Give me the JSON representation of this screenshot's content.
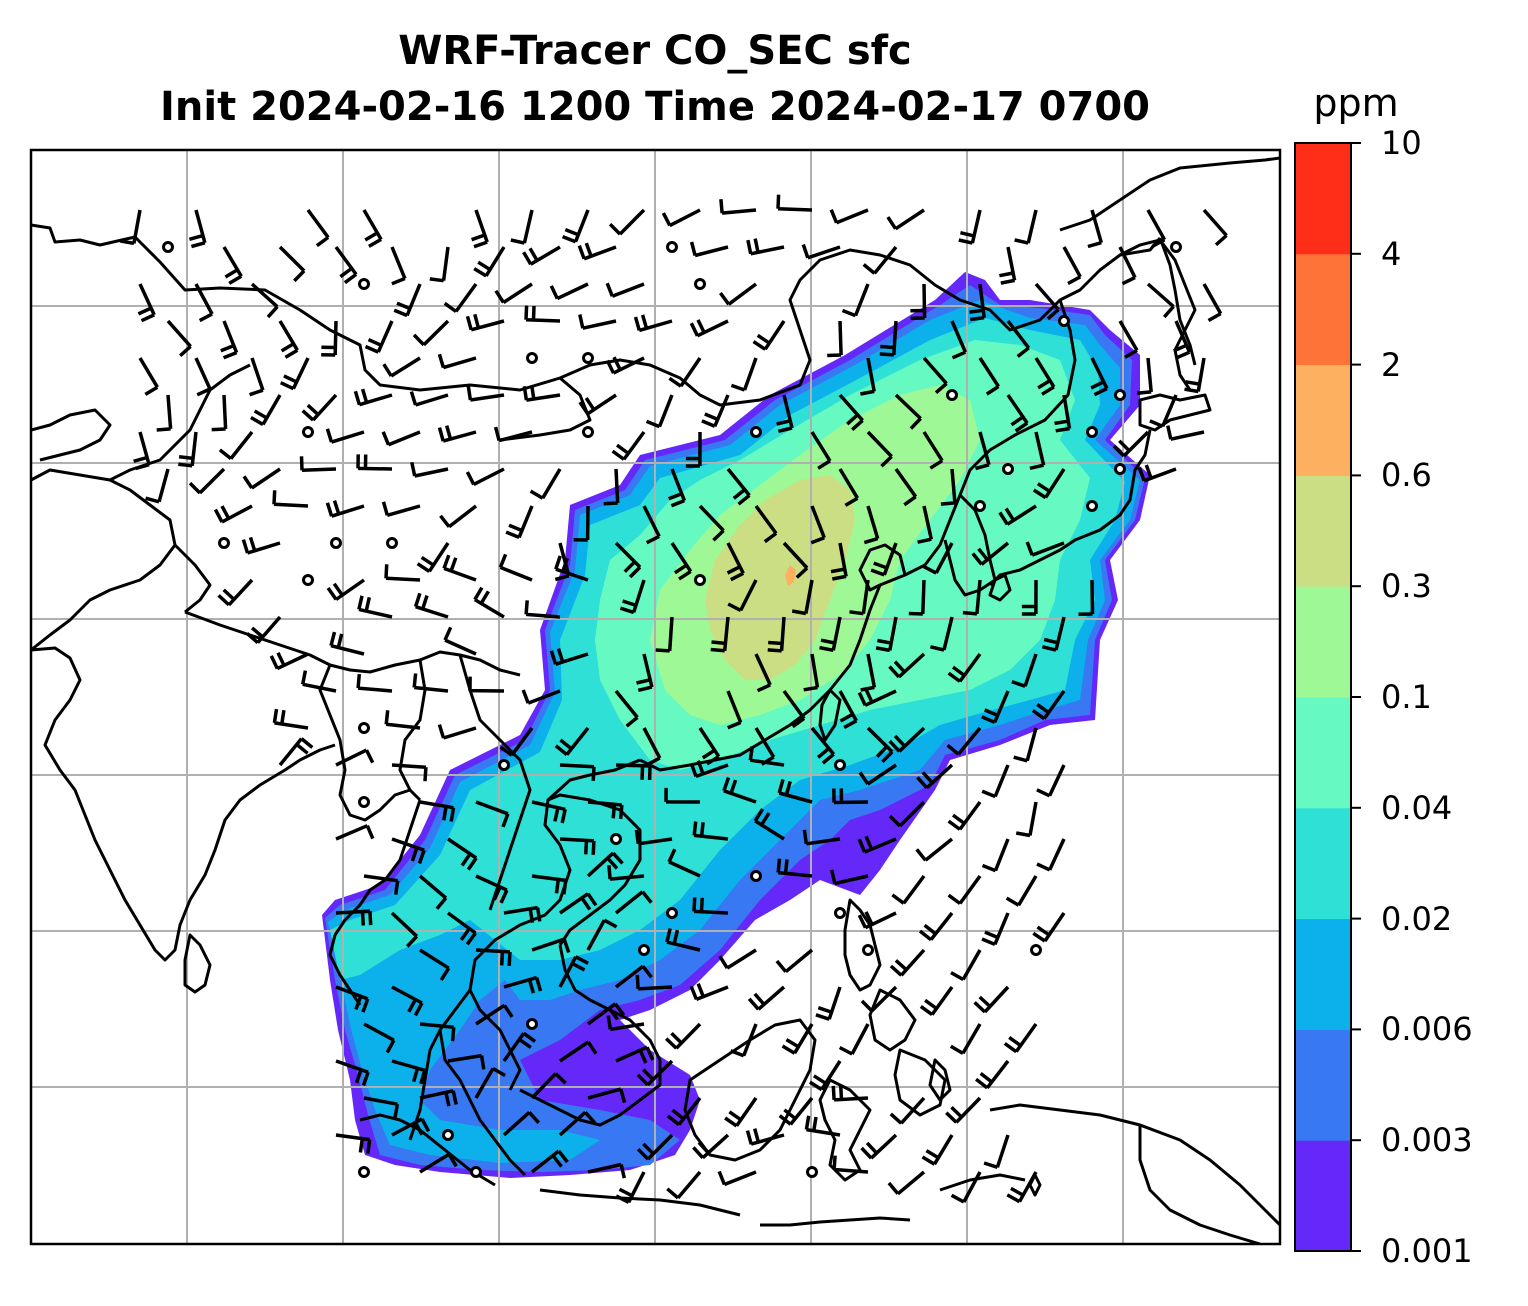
{
  "title": {
    "line1": "WRF-Tracer CO_SEC sfc",
    "line2": "Init 2024-02-16 1200 Time 2024-02-17 0700"
  },
  "colorbar": {
    "unit": "ppm",
    "levels": [
      "0.001",
      "0.003",
      "0.006",
      "0.02",
      "0.04",
      "0.1",
      "0.3",
      "0.6",
      "2",
      "4",
      "10"
    ],
    "colors": [
      "#6428f8",
      "#3878f2",
      "#0cb0ea",
      "#2ee0d6",
      "#66fac2",
      "#9ef896",
      "#ccde84",
      "#fdb060",
      "#fe7438",
      "#fe2e18"
    ]
  },
  "map": {
    "background": "#ffffff",
    "gridline_color": "#b0b0b0",
    "coastline_color": "#000000",
    "gridlines": "on",
    "grid_tick_labels": "none",
    "overlays": [
      "coastlines",
      "country borders",
      "wind barbs",
      "calm-wind circles"
    ]
  }
}
